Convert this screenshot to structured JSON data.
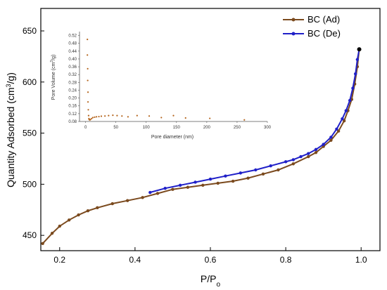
{
  "chart_data": [
    {
      "type": "line",
      "xlabel": "P/Po",
      "ylabel": "Quantity Adsorbed (cm3/g)",
      "xlim": [
        0.15,
        1.05
      ],
      "ylim": [
        435,
        672
      ],
      "xticks": [
        0.2,
        0.4,
        0.6,
        0.8,
        1.0
      ],
      "xtick_labels": [
        "0.2",
        "0.4",
        "0.6",
        "0.8",
        "1.0"
      ],
      "yticks": [
        450,
        500,
        550,
        600,
        650
      ],
      "ytick_labels": [
        "450",
        "500",
        "550",
        "600",
        "650"
      ],
      "legend_position": "top-right",
      "series": [
        {
          "name": "BC (Ad)",
          "color": "#7b4a1e",
          "marker": "circle",
          "x": [
            0.155,
            0.18,
            0.2,
            0.225,
            0.25,
            0.275,
            0.3,
            0.34,
            0.38,
            0.42,
            0.46,
            0.5,
            0.54,
            0.58,
            0.62,
            0.66,
            0.7,
            0.74,
            0.78,
            0.82,
            0.86,
            0.88,
            0.9,
            0.92,
            0.94,
            0.955,
            0.965,
            0.975,
            0.983,
            0.99,
            0.995
          ],
          "values": [
            442,
            452,
            459,
            465,
            470,
            474,
            477,
            481,
            484,
            487,
            491,
            495,
            497,
            499,
            501,
            503,
            506,
            510,
            514,
            520,
            527,
            531,
            537,
            543,
            552,
            562,
            572,
            583,
            598,
            615,
            632
          ]
        },
        {
          "name": "BC (De)",
          "color": "#2020c8",
          "marker": "circle",
          "x": [
            0.995,
            0.99,
            0.985,
            0.978,
            0.97,
            0.96,
            0.95,
            0.935,
            0.92,
            0.9,
            0.88,
            0.86,
            0.84,
            0.82,
            0.8,
            0.76,
            0.72,
            0.68,
            0.64,
            0.6,
            0.56,
            0.52,
            0.48,
            0.44
          ],
          "values": [
            632,
            622,
            608,
            594,
            582,
            572,
            564,
            554,
            546,
            539,
            534,
            530,
            527,
            524,
            522,
            518,
            514,
            511,
            508,
            505,
            502,
            499,
            496,
            492
          ]
        }
      ]
    },
    {
      "type": "scatter",
      "xlabel": "Pore diameter (nm)",
      "ylabel": "Pore Volume (cm3/g)",
      "xlim": [
        -10,
        300
      ],
      "ylim": [
        0.08,
        0.54
      ],
      "xticks": [
        0,
        50,
        100,
        150,
        200,
        250,
        300
      ],
      "xtick_labels": [
        "0",
        "50",
        "100",
        "150",
        "200",
        "250",
        "300"
      ],
      "yticks": [
        0.08,
        0.12,
        0.16,
        0.2,
        0.24,
        0.28,
        0.32,
        0.36,
        0.4,
        0.44,
        0.48,
        0.52
      ],
      "ytick_labels": [
        "0.08",
        "0.12",
        "0.16",
        "0.20",
        "0.24",
        "0.28",
        "0.32",
        "0.36",
        "0.40",
        "0.44",
        "0.48",
        "0.52"
      ],
      "color": "#b5651d",
      "x": [
        3,
        3,
        3.5,
        3.5,
        4,
        4,
        4.5,
        5,
        5.5,
        6,
        7,
        8,
        10,
        12,
        15,
        18,
        22,
        26,
        32,
        38,
        45,
        52,
        60,
        70,
        85,
        105,
        125,
        145,
        165,
        205,
        262
      ],
      "values": [
        0.5,
        0.42,
        0.35,
        0.29,
        0.23,
        0.18,
        0.14,
        0.11,
        0.095,
        0.09,
        0.088,
        0.09,
        0.095,
        0.1,
        0.102,
        0.104,
        0.105,
        0.107,
        0.108,
        0.11,
        0.112,
        0.11,
        0.108,
        0.104,
        0.11,
        0.108,
        0.1,
        0.11,
        0.098,
        0.096,
        0.088
      ]
    }
  ]
}
